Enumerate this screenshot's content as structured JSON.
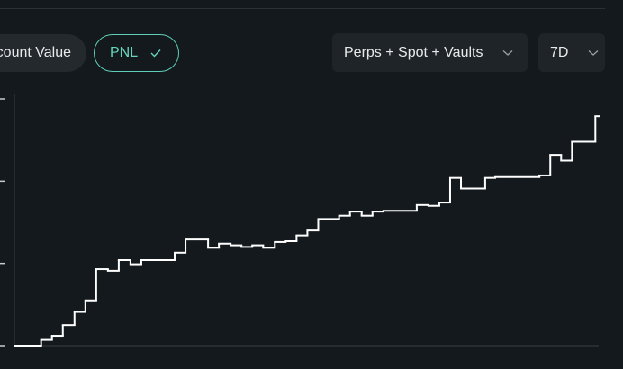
{
  "ui": {
    "tabs": [
      "Account Value",
      "PNL"
    ],
    "scope": "Perps + Spot + Vaults",
    "range": "7D"
  },
  "chart_data": {
    "type": "step",
    "color": "#ffffff",
    "x": [
      0,
      0.32,
      0.45,
      0.58,
      0.72,
      0.85,
      0.98,
      1.12,
      1.25,
      1.39,
      1.52,
      1.92,
      2.05,
      2.32,
      2.45,
      2.59,
      2.72,
      2.85,
      2.98,
      3.12,
      3.25,
      3.38,
      3.51,
      3.64,
      3.89,
      4.02,
      4.16,
      4.29,
      4.42,
      4.82,
      4.96,
      5.09,
      5.22,
      5.35,
      5.64,
      5.76,
      6.29,
      6.42,
      6.55,
      6.68,
      6.96
    ],
    "values": [
      0,
      0.07,
      0.12,
      0.25,
      0.41,
      0.55,
      0.93,
      0.91,
      1.04,
      0.99,
      1.04,
      1.13,
      1.29,
      1.19,
      1.24,
      1.22,
      1.2,
      1.22,
      1.19,
      1.26,
      1.27,
      1.34,
      1.4,
      1.54,
      1.58,
      1.63,
      1.58,
      1.63,
      1.64,
      1.71,
      1.7,
      1.74,
      2.04,
      1.91,
      2.04,
      2.05,
      2.07,
      2.32,
      2.25,
      2.48,
      2.79
    ],
    "xlim": [
      0,
      7
    ],
    "ylim": [
      0,
      3
    ],
    "yticks": [
      0,
      1,
      2,
      3
    ]
  }
}
